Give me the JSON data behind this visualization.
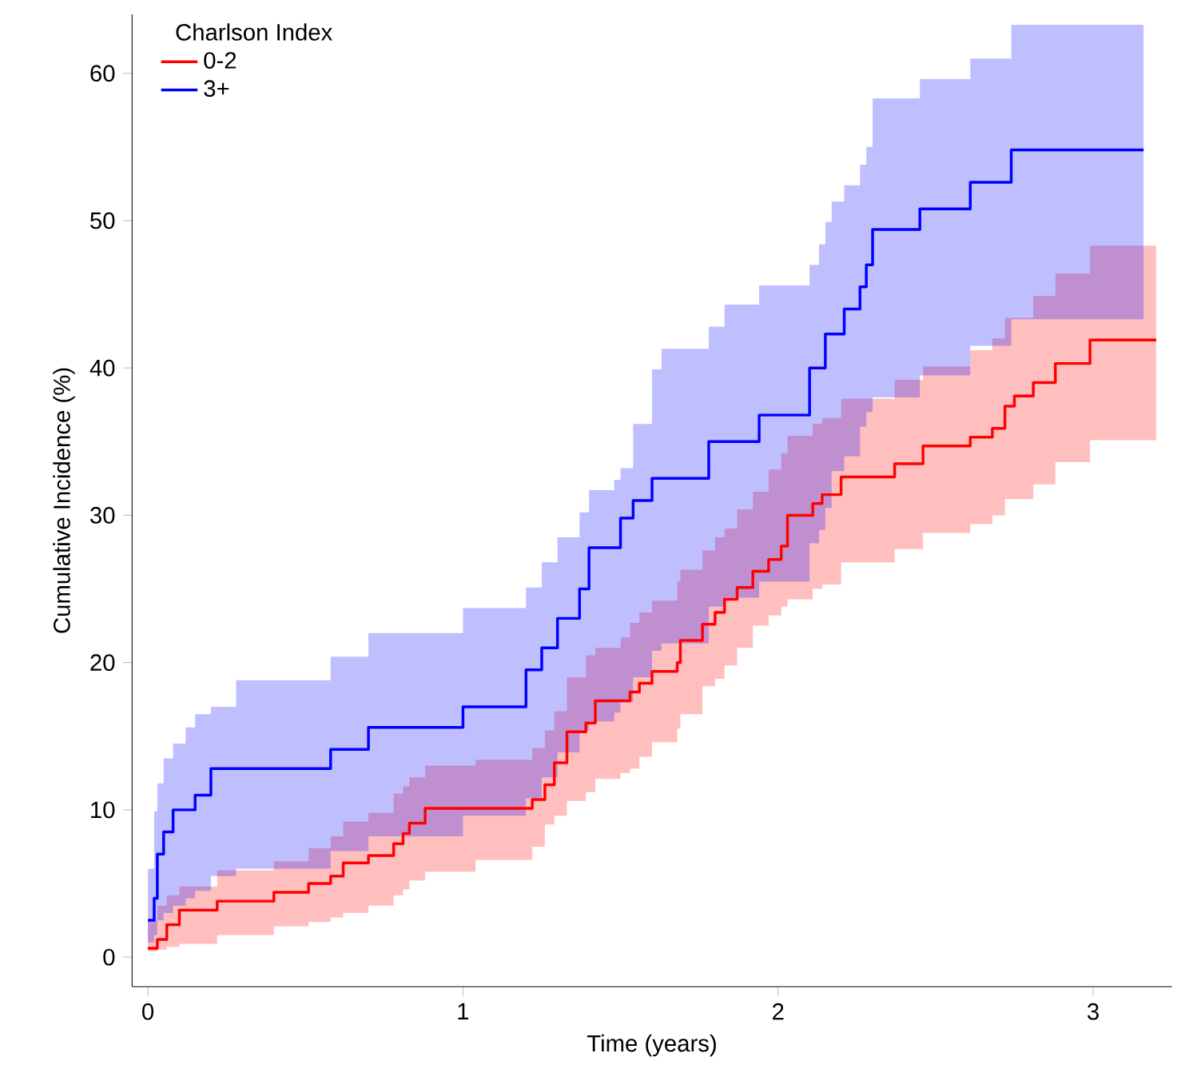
{
  "chart_data": {
    "type": "step",
    "xlabel": "Time (years)",
    "ylabel": "Cumulative Incidence (%)",
    "legend_title": "Charlson Index",
    "legend": "top left",
    "grid": false,
    "xlim": [
      -0.05,
      3.25
    ],
    "ylim": [
      -2,
      64
    ],
    "xticks": [
      0,
      1,
      2,
      3
    ],
    "yticks": [
      0,
      10,
      20,
      30,
      40,
      50,
      60
    ],
    "series": [
      {
        "name": "0-2",
        "color": "#ff0000",
        "x": [
          0,
          0.03,
          0.06,
          0.1,
          0.22,
          0.4,
          0.51,
          0.58,
          0.62,
          0.7,
          0.78,
          0.81,
          0.83,
          0.88,
          1.04,
          1.22,
          1.26,
          1.29,
          1.33,
          1.39,
          1.42,
          1.5,
          1.53,
          1.56,
          1.6,
          1.68,
          1.69,
          1.76,
          1.8,
          1.83,
          1.87,
          1.92,
          1.97,
          2.01,
          2.03,
          2.11,
          2.14,
          2.2,
          2.37,
          2.46,
          2.61,
          2.68,
          2.72,
          2.75,
          2.81,
          2.88,
          2.99,
          3.2
        ],
        "values": [
          0.6,
          1.2,
          2.2,
          3.2,
          3.8,
          4.4,
          5.0,
          5.5,
          6.4,
          6.9,
          7.7,
          8.4,
          9.1,
          10.1,
          10.1,
          10.7,
          11.7,
          13.2,
          15.3,
          15.9,
          17.4,
          17.4,
          18.0,
          18.6,
          19.4,
          20.0,
          21.5,
          22.6,
          23.4,
          24.3,
          25.1,
          26.2,
          27.0,
          27.9,
          30.0,
          30.8,
          31.4,
          32.6,
          33.5,
          34.7,
          35.3,
          35.9,
          37.4,
          38.1,
          39.0,
          40.3,
          41.9,
          41.9
        ],
        "lower": [
          0.4,
          0.5,
          0.7,
          0.9,
          1.5,
          2.1,
          2.4,
          2.7,
          3.0,
          3.5,
          4.2,
          4.6,
          5.2,
          5.8,
          6.6,
          7.5,
          9.0,
          9.6,
          10.6,
          11.2,
          12.1,
          12.5,
          12.8,
          13.6,
          14.6,
          15.5,
          16.5,
          18.4,
          18.9,
          19.8,
          21.0,
          22.5,
          23.2,
          23.8,
          24.3,
          25.0,
          25.3,
          26.8,
          27.7,
          28.8,
          29.4,
          30.0,
          31.1,
          31.1,
          32.1,
          33.6,
          35.1,
          35.1
        ],
        "upper": [
          2.5,
          3.5,
          4.2,
          4.8,
          5.9,
          6.5,
          7.4,
          8.2,
          9.2,
          9.8,
          11.1,
          11.6,
          12.2,
          13.0,
          13.4,
          14.2,
          15.4,
          16.7,
          19.0,
          20.5,
          21.0,
          21.7,
          22.7,
          23.4,
          24.2,
          25.5,
          26.3,
          27.6,
          28.5,
          29.1,
          30.4,
          31.6,
          33.1,
          34.2,
          35.4,
          36.2,
          36.6,
          37.9,
          39.2,
          40.1,
          41.2,
          42.0,
          43.4,
          43.4,
          44.9,
          46.4,
          48.3,
          48.3
        ]
      },
      {
        "name": "3+",
        "color": "#0000ff",
        "x": [
          0,
          0.02,
          0.03,
          0.05,
          0.08,
          0.12,
          0.15,
          0.2,
          0.28,
          0.58,
          0.7,
          1.0,
          1.2,
          1.25,
          1.3,
          1.37,
          1.4,
          1.48,
          1.5,
          1.54,
          1.6,
          1.63,
          1.78,
          1.83,
          1.94,
          2.1,
          2.13,
          2.15,
          2.17,
          2.21,
          2.26,
          2.28,
          2.3,
          2.45,
          2.61,
          2.74,
          3.16
        ],
        "values": [
          2.5,
          4.0,
          7.0,
          8.5,
          10.0,
          10.0,
          11.0,
          12.8,
          12.8,
          14.1,
          15.6,
          17.0,
          19.5,
          21.0,
          23.0,
          25.0,
          27.8,
          27.8,
          29.8,
          31.0,
          32.5,
          32.5,
          35.0,
          35.0,
          36.8,
          40.0,
          40.0,
          42.3,
          42.3,
          44.0,
          45.5,
          47.0,
          49.4,
          50.8,
          52.6,
          54.8,
          54.8
        ],
        "lower": [
          1.0,
          1.5,
          2.5,
          3.0,
          3.5,
          4.0,
          4.5,
          5.5,
          6.0,
          7.2,
          8.2,
          9.6,
          10.8,
          12.2,
          13.9,
          15.4,
          16.0,
          16.6,
          17.3,
          19.0,
          20.8,
          21.3,
          23.8,
          24.4,
          25.5,
          28.1,
          29.0,
          30.5,
          33.0,
          34.0,
          36.0,
          37.0,
          38.0,
          39.5,
          41.5,
          43.3,
          43.3
        ],
        "upper": [
          6.0,
          9.9,
          11.8,
          13.5,
          14.5,
          15.6,
          16.5,
          17.0,
          18.8,
          20.4,
          22.0,
          23.7,
          25.1,
          26.8,
          28.5,
          30.2,
          31.7,
          32.4,
          33.2,
          36.2,
          39.9,
          41.3,
          42.8,
          44.3,
          45.6,
          47.0,
          48.4,
          49.9,
          51.3,
          52.4,
          53.8,
          55.0,
          58.3,
          59.6,
          61.0,
          63.3,
          63.3
        ]
      }
    ]
  }
}
